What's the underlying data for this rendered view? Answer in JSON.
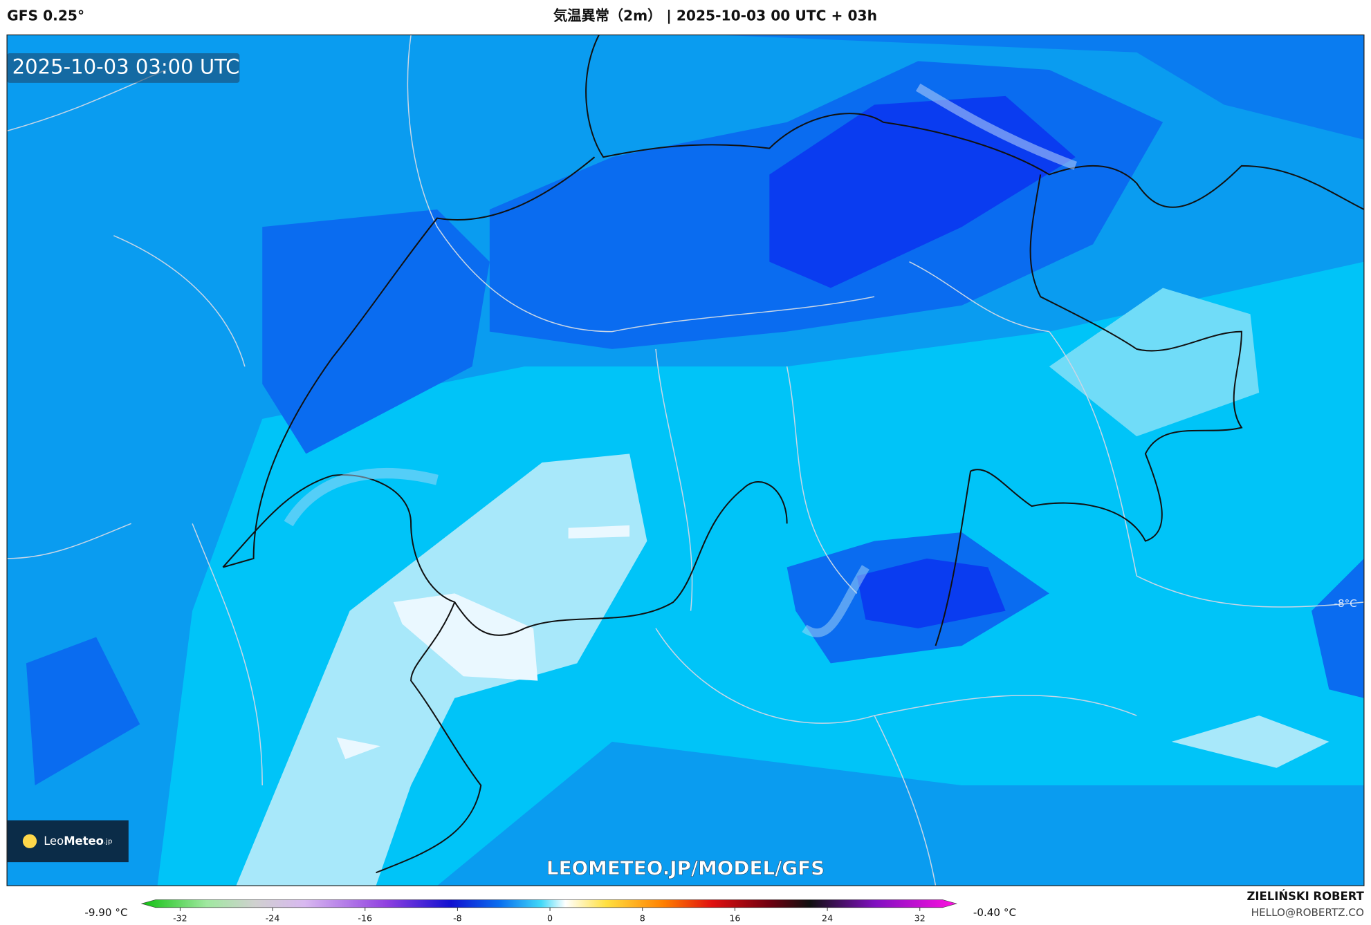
{
  "header": {
    "model": "GFS 0.25°",
    "title": "気温異常（2m） | 2025-10-03 00 UTC + 03h"
  },
  "map": {
    "valid_time": "2025-10-03 03:00 UTC",
    "watermark": "LEOMETEO.JP/MODEL/GFS",
    "contour_label": "-8°C",
    "logo": {
      "prefix": "Leo",
      "name": "Meteo",
      "suffix": ".jp"
    }
  },
  "legend": {
    "min_label": "-9.90 °C",
    "max_label": "-0.40 °C",
    "lim": [
      -32,
      32
    ],
    "ticks": [
      -32,
      -24,
      -16,
      -8,
      0,
      8,
      16,
      24,
      32
    ]
  },
  "credit": {
    "author": "ZIELIŃSKI ROBERT",
    "email": "HELLO@ROBERTZ.CO"
  }
}
